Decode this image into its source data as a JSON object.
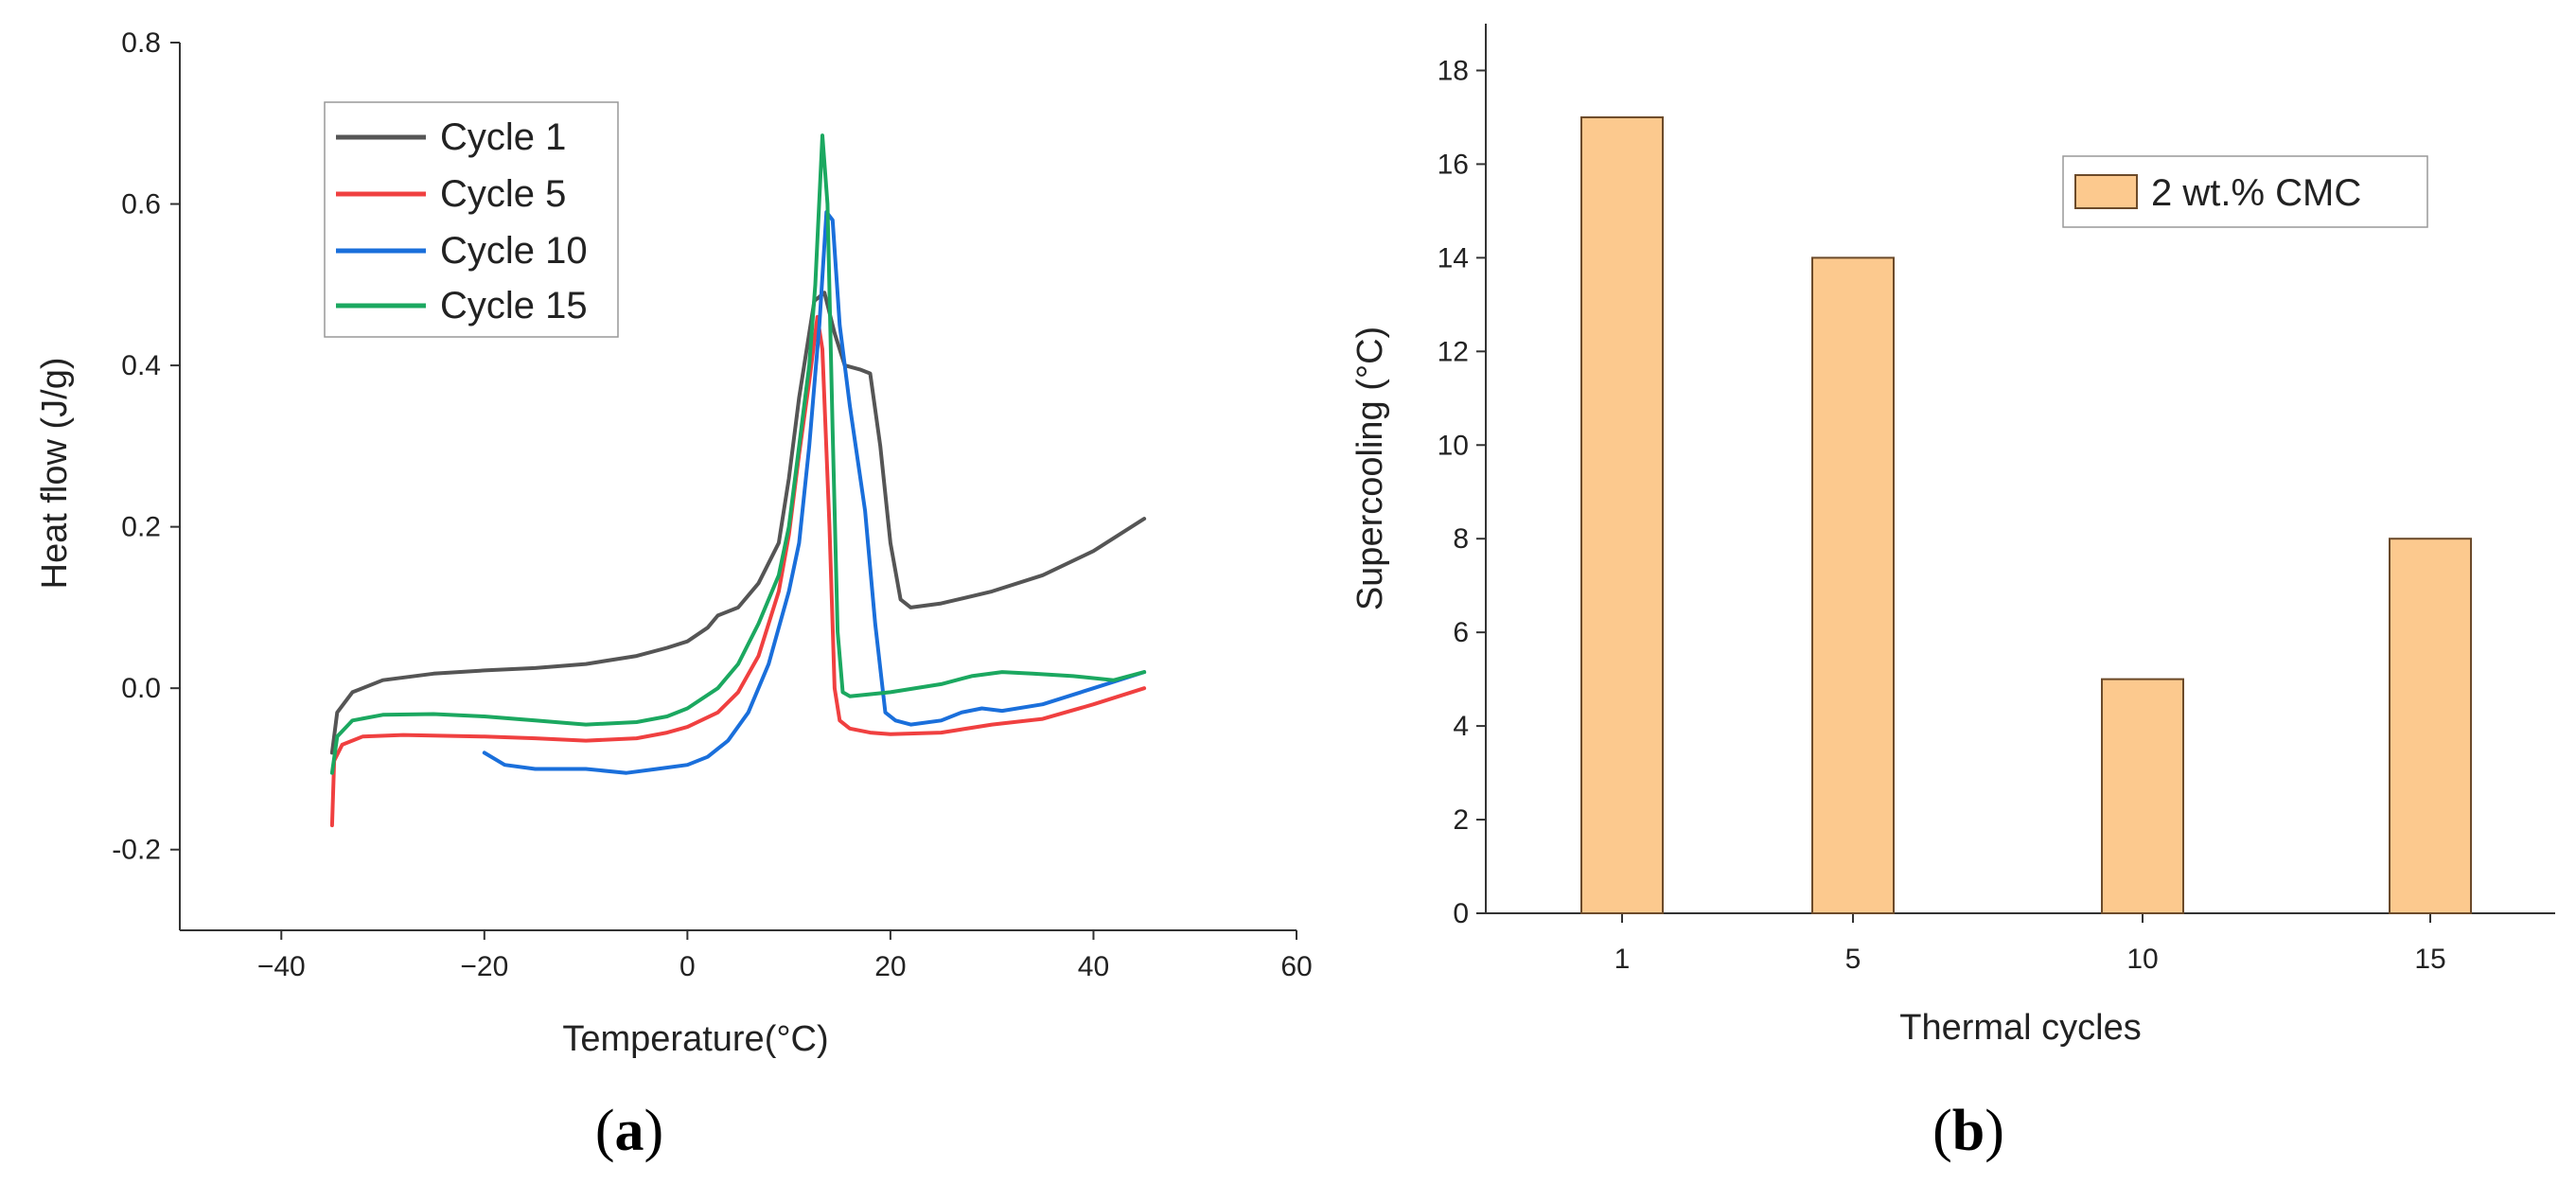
{
  "chart_data": [
    {
      "type": "line",
      "panel_label": {
        "open": "(",
        "letter": "a",
        "close": ")"
      },
      "xlabel": "Temperature",
      "xlabel_unit": "(°C)",
      "ylabel": "Heat flow",
      "ylabel_unit": "(J/g)",
      "xlim": [
        -50,
        60
      ],
      "ylim": [
        -0.3,
        0.8
      ],
      "xticks": [
        -40,
        -20,
        0,
        20,
        40,
        60
      ],
      "xtick_labels": [
        "−40",
        "−20",
        "0",
        "20",
        "40",
        "60"
      ],
      "yticks": [
        -0.2,
        0.0,
        0.2,
        0.4,
        0.6,
        0.8
      ],
      "ytick_labels": [
        "-0.2",
        "0.0",
        "0.2",
        "0.4",
        "0.6",
        "0.8"
      ],
      "legend_position": "top-left",
      "series": [
        {
          "name": "Cycle 1",
          "color": "#555555",
          "points": [
            [
              -35,
              -0.08
            ],
            [
              -34.5,
              -0.03
            ],
            [
              -33,
              -0.005
            ],
            [
              -30,
              0.01
            ],
            [
              -25,
              0.018
            ],
            [
              -20,
              0.022
            ],
            [
              -15,
              0.025
            ],
            [
              -10,
              0.03
            ],
            [
              -5,
              0.04
            ],
            [
              -2,
              0.05
            ],
            [
              0,
              0.058
            ],
            [
              2,
              0.075
            ],
            [
              3,
              0.09
            ],
            [
              5,
              0.1
            ],
            [
              7,
              0.13
            ],
            [
              9,
              0.18
            ],
            [
              10,
              0.26
            ],
            [
              11,
              0.36
            ],
            [
              12,
              0.44
            ],
            [
              12.5,
              0.48
            ],
            [
              13.5,
              0.49
            ],
            [
              14.5,
              0.44
            ],
            [
              15.5,
              0.4
            ],
            [
              17,
              0.395
            ],
            [
              18,
              0.39
            ],
            [
              19,
              0.3
            ],
            [
              20,
              0.18
            ],
            [
              21,
              0.11
            ],
            [
              22,
              0.1
            ],
            [
              25,
              0.105
            ],
            [
              30,
              0.12
            ],
            [
              35,
              0.14
            ],
            [
              40,
              0.17
            ],
            [
              45,
              0.21
            ]
          ]
        },
        {
          "name": "Cycle 5",
          "color": "#f04040",
          "points": [
            [
              -35,
              -0.17
            ],
            [
              -34.8,
              -0.09
            ],
            [
              -34,
              -0.07
            ],
            [
              -32,
              -0.06
            ],
            [
              -28,
              -0.058
            ],
            [
              -20,
              -0.06
            ],
            [
              -15,
              -0.062
            ],
            [
              -10,
              -0.065
            ],
            [
              -5,
              -0.062
            ],
            [
              -2,
              -0.055
            ],
            [
              0,
              -0.048
            ],
            [
              3,
              -0.03
            ],
            [
              5,
              -0.005
            ],
            [
              7,
              0.04
            ],
            [
              9,
              0.12
            ],
            [
              10,
              0.19
            ],
            [
              11,
              0.29
            ],
            [
              12,
              0.38
            ],
            [
              12.8,
              0.46
            ],
            [
              13.3,
              0.42
            ],
            [
              14,
              0.2
            ],
            [
              14.5,
              0.0
            ],
            [
              15,
              -0.04
            ],
            [
              16,
              -0.05
            ],
            [
              18,
              -0.055
            ],
            [
              20,
              -0.057
            ],
            [
              25,
              -0.055
            ],
            [
              30,
              -0.045
            ],
            [
              35,
              -0.038
            ],
            [
              40,
              -0.02
            ],
            [
              45,
              0.0
            ]
          ]
        },
        {
          "name": "Cycle 10",
          "color": "#1a6fdb",
          "points": [
            [
              -20,
              -0.08
            ],
            [
              -18,
              -0.095
            ],
            [
              -15,
              -0.1
            ],
            [
              -10,
              -0.1
            ],
            [
              -6,
              -0.105
            ],
            [
              -3,
              -0.1
            ],
            [
              0,
              -0.095
            ],
            [
              2,
              -0.085
            ],
            [
              4,
              -0.065
            ],
            [
              6,
              -0.03
            ],
            [
              8,
              0.03
            ],
            [
              10,
              0.12
            ],
            [
              11,
              0.18
            ],
            [
              12,
              0.3
            ],
            [
              13,
              0.45
            ],
            [
              13.7,
              0.59
            ],
            [
              14.3,
              0.58
            ],
            [
              15,
              0.45
            ],
            [
              16,
              0.35
            ],
            [
              17.5,
              0.22
            ],
            [
              18.5,
              0.08
            ],
            [
              19.5,
              -0.03
            ],
            [
              20.5,
              -0.04
            ],
            [
              22,
              -0.045
            ],
            [
              25,
              -0.04
            ],
            [
              27,
              -0.03
            ],
            [
              29,
              -0.025
            ],
            [
              31,
              -0.028
            ],
            [
              35,
              -0.02
            ],
            [
              40,
              0.0
            ],
            [
              45,
              0.02
            ]
          ]
        },
        {
          "name": "Cycle 15",
          "color": "#1ba860",
          "points": [
            [
              -35,
              -0.105
            ],
            [
              -34.5,
              -0.06
            ],
            [
              -33,
              -0.04
            ],
            [
              -30,
              -0.033
            ],
            [
              -25,
              -0.032
            ],
            [
              -20,
              -0.035
            ],
            [
              -15,
              -0.04
            ],
            [
              -10,
              -0.045
            ],
            [
              -5,
              -0.042
            ],
            [
              -2,
              -0.035
            ],
            [
              0,
              -0.025
            ],
            [
              3,
              0.0
            ],
            [
              5,
              0.03
            ],
            [
              7,
              0.08
            ],
            [
              9,
              0.14
            ],
            [
              10,
              0.2
            ],
            [
              11,
              0.3
            ],
            [
              12,
              0.4
            ],
            [
              12.6,
              0.5
            ],
            [
              13.3,
              0.685
            ],
            [
              13.8,
              0.6
            ],
            [
              14.3,
              0.32
            ],
            [
              14.8,
              0.07
            ],
            [
              15.3,
              -0.005
            ],
            [
              16,
              -0.01
            ],
            [
              20,
              -0.005
            ],
            [
              25,
              0.005
            ],
            [
              28,
              0.015
            ],
            [
              31,
              0.02
            ],
            [
              34,
              0.018
            ],
            [
              38,
              0.015
            ],
            [
              42,
              0.01
            ],
            [
              45,
              0.02
            ]
          ]
        }
      ]
    },
    {
      "type": "bar",
      "panel_label": {
        "open": "(",
        "letter": "b",
        "close": ")"
      },
      "xlabel": "Thermal cycles",
      "ylabel": "Supercooling",
      "ylabel_unit": "(°C)",
      "categories": [
        "1",
        "5",
        "10",
        "15"
      ],
      "series": [
        {
          "name": "2 wt.% CMC",
          "values": [
            17,
            14,
            5,
            8
          ],
          "color": "#fcc98e",
          "edge": "#6b4a2a"
        }
      ],
      "ylim": [
        0,
        19
      ],
      "yticks": [
        0,
        2,
        4,
        6,
        8,
        10,
        12,
        14,
        16,
        18
      ],
      "ytick_labels": [
        "0",
        "2",
        "4",
        "6",
        "8",
        "10",
        "12",
        "14",
        "16",
        "18"
      ],
      "legend_position": "top-right"
    }
  ]
}
